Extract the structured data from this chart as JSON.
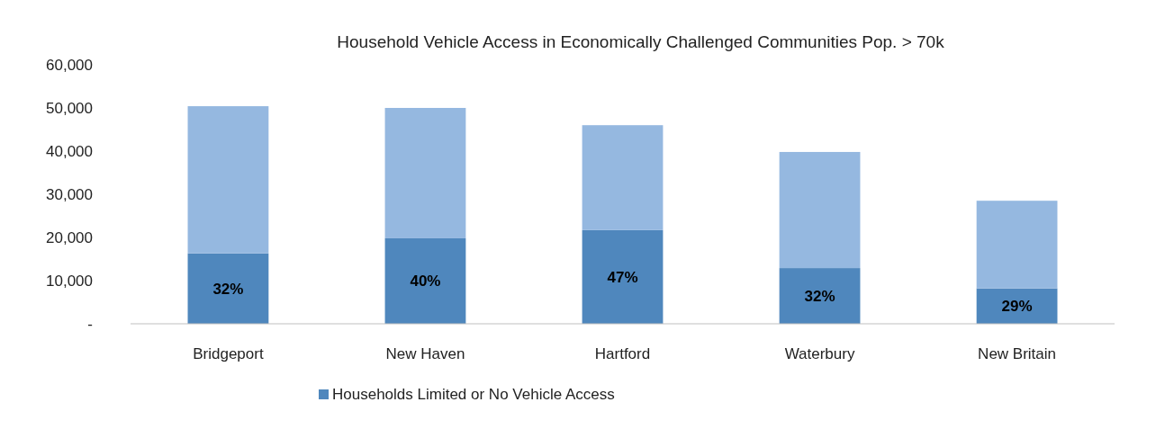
{
  "chart_data": {
    "type": "bar",
    "title": "Household Vehicle Access in Economically Challenged Communities Pop. > 70k",
    "categories": [
      "Bridgeport",
      "New Haven",
      "Hartford",
      "Waterbury",
      "New Britain"
    ],
    "stacked": true,
    "series": [
      {
        "name": "Households Limited or No Vehicle Access",
        "color": "#4f87bd",
        "values": [
          16300,
          19800,
          21700,
          12900,
          8200
        ]
      },
      {
        "color": "#95b8e0",
        "values": [
          34100,
          30200,
          24300,
          26900,
          20300
        ]
      }
    ],
    "ylim": [
      0,
      60000
    ],
    "yticks": [
      {
        "value": 0,
        "label": "-"
      },
      {
        "value": 10000,
        "label": "10,000"
      },
      {
        "value": 20000,
        "label": "20,000"
      },
      {
        "value": 30000,
        "label": "30,000"
      },
      {
        "value": 40000,
        "label": "40,000"
      },
      {
        "value": 50000,
        "label": "50,000"
      },
      {
        "value": 60000,
        "label": "60,000"
      }
    ],
    "legend": "bottom",
    "annotations": [
      {
        "text": "32%",
        "x": "Bridgeport",
        "y": 16300
      },
      {
        "text": "40%",
        "x": "New Haven",
        "y": 19800
      },
      {
        "text": "47%",
        "x": "Hartford",
        "y": 21700
      },
      {
        "text": "32%",
        "x": "Waterbury",
        "y": 12900
      },
      {
        "text": "29%",
        "x": "New Britain",
        "y": 8200
      }
    ]
  }
}
